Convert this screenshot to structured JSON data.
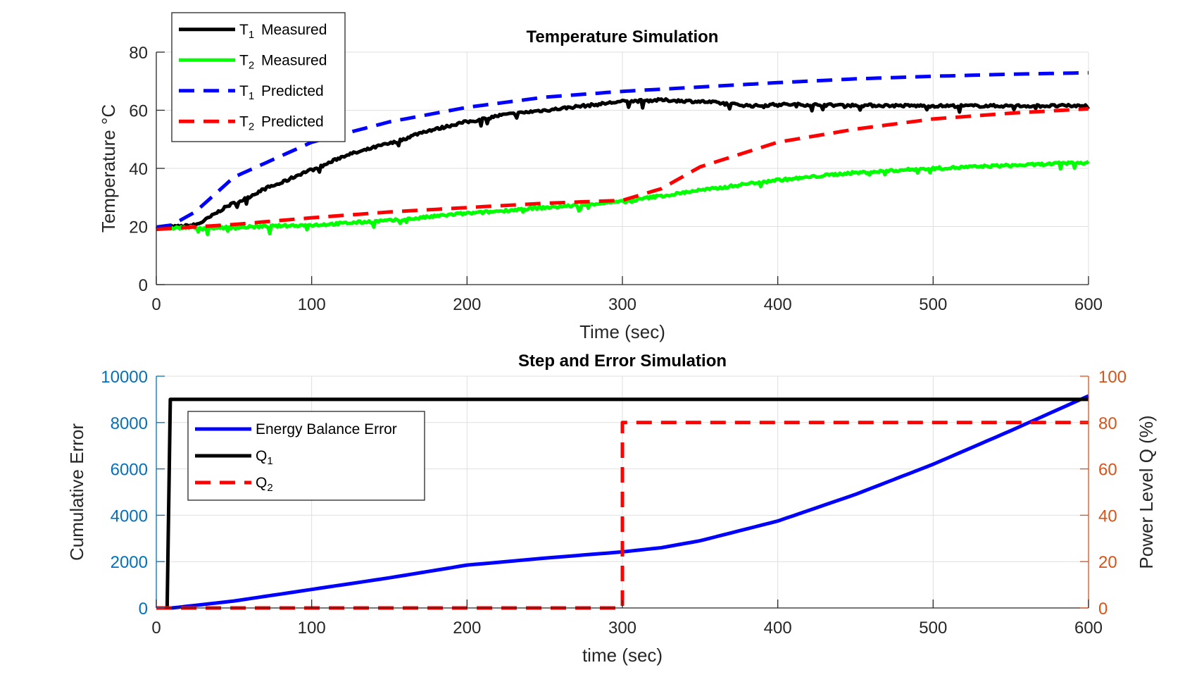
{
  "chart_data": [
    {
      "type": "line",
      "title": "Temperature Simulation",
      "xlabel": "Time (sec)",
      "ylabel": "Temperature °C",
      "xlim": [
        0,
        600
      ],
      "ylim": [
        0,
        80
      ],
      "xticks": [
        0,
        100,
        200,
        300,
        400,
        500,
        600
      ],
      "yticks": [
        0,
        20,
        40,
        60,
        80
      ],
      "grid": true,
      "legend_position": "top-left",
      "legend": [
        {
          "label": "T",
          "sub": "1",
          "suffix": " Measured",
          "color": "#000000",
          "dash": "solid"
        },
        {
          "label": "T",
          "sub": "2",
          "suffix": " Measured",
          "color": "#00ff00",
          "dash": "solid"
        },
        {
          "label": "T",
          "sub": "1",
          "suffix": " Predicted",
          "color": "#0000ff",
          "dash": "dashed"
        },
        {
          "label": "T",
          "sub": "2",
          "suffix": " Predicted",
          "color": "#ff0000",
          "dash": "dashed"
        }
      ],
      "series": [
        {
          "name": "T1 Measured",
          "color": "#000000",
          "dash": "solid",
          "noise": true,
          "x": [
            0,
            15,
            25,
            50,
            75,
            100,
            125,
            150,
            175,
            200,
            225,
            250,
            275,
            300,
            325,
            350,
            385,
            400,
            450,
            500,
            550,
            600
          ],
          "y": [
            19.5,
            20,
            20.5,
            28,
            34,
            39.5,
            45,
            48.5,
            53,
            56,
            58.5,
            60,
            61.5,
            63,
            63.5,
            63,
            61.5,
            62,
            61.7,
            61.5,
            61.5,
            61.5
          ]
        },
        {
          "name": "T2 Measured",
          "color": "#00ff00",
          "dash": "solid",
          "noise": true,
          "x": [
            0,
            50,
            100,
            150,
            200,
            250,
            300,
            325,
            350,
            400,
            450,
            500,
            550,
            600
          ],
          "y": [
            19.5,
            19.7,
            20.5,
            22,
            24.5,
            26.5,
            28.5,
            30.5,
            32.5,
            36,
            38.5,
            40,
            41,
            42
          ]
        },
        {
          "name": "T1 Predicted",
          "color": "#0000ff",
          "dash": "dashed",
          "x": [
            0,
            10,
            25,
            50,
            100,
            150,
            200,
            250,
            300,
            350,
            400,
            450,
            500,
            550,
            600
          ],
          "y": [
            19.8,
            20.5,
            25,
            37,
            49,
            56,
            61,
            64.5,
            66.5,
            68,
            69.5,
            70.8,
            71.7,
            72.4,
            72.9
          ]
        },
        {
          "name": "T2 Predicted",
          "color": "#ff0000",
          "dash": "dashed",
          "x": [
            0,
            50,
            100,
            150,
            200,
            250,
            300,
            325,
            350,
            400,
            450,
            500,
            550,
            600
          ],
          "y": [
            19,
            20.7,
            23,
            25,
            26.5,
            28,
            29,
            33,
            40.5,
            49,
            53.5,
            57,
            59,
            60.5
          ]
        }
      ]
    },
    {
      "type": "line",
      "title": "Step and Error Simulation",
      "xlabel": "time (sec)",
      "ylabel_left": "Cumulative Error",
      "ylabel_right": "Power Level Q (%)",
      "xlim": [
        0,
        600
      ],
      "ylim_left": [
        0,
        10000
      ],
      "ylim_right": [
        0,
        100
      ],
      "xticks": [
        0,
        100,
        200,
        300,
        400,
        500,
        600
      ],
      "yticks_left": [
        0,
        2000,
        4000,
        6000,
        8000,
        10000
      ],
      "yticks_right": [
        0,
        20,
        40,
        60,
        80,
        100
      ],
      "grid": true,
      "legend_position": "top-left",
      "colors": {
        "left_axis": "#0072bd",
        "right_axis": "#d95319"
      },
      "legend": [
        {
          "label": "Energy Balance Error",
          "sub": "",
          "suffix": "",
          "color": "#0000ff",
          "dash": "solid"
        },
        {
          "label": "Q",
          "sub": "1",
          "suffix": "",
          "color": "#000000",
          "dash": "solid"
        },
        {
          "label": "Q",
          "sub": "2",
          "suffix": "",
          "color": "#ff0000",
          "dash": "dashed"
        }
      ],
      "series": [
        {
          "name": "Energy Balance Error",
          "axis": "left",
          "color": "#0000ff",
          "dash": "solid",
          "x": [
            0,
            10,
            50,
            100,
            150,
            200,
            250,
            300,
            325,
            350,
            400,
            450,
            500,
            550,
            600
          ],
          "y": [
            0,
            0,
            300,
            800,
            1300,
            1850,
            2150,
            2420,
            2600,
            2900,
            3750,
            4900,
            6200,
            7650,
            9150
          ]
        },
        {
          "name": "Q1",
          "axis": "right",
          "color": "#000000",
          "dash": "solid",
          "x": [
            7,
            9,
            600
          ],
          "y": [
            0,
            90,
            90
          ]
        },
        {
          "name": "Q2",
          "axis": "right",
          "color": "#ff0000",
          "dash": "dashed",
          "x": [
            0,
            300,
            300,
            600
          ],
          "y": [
            0,
            0,
            80,
            80
          ]
        }
      ]
    }
  ]
}
